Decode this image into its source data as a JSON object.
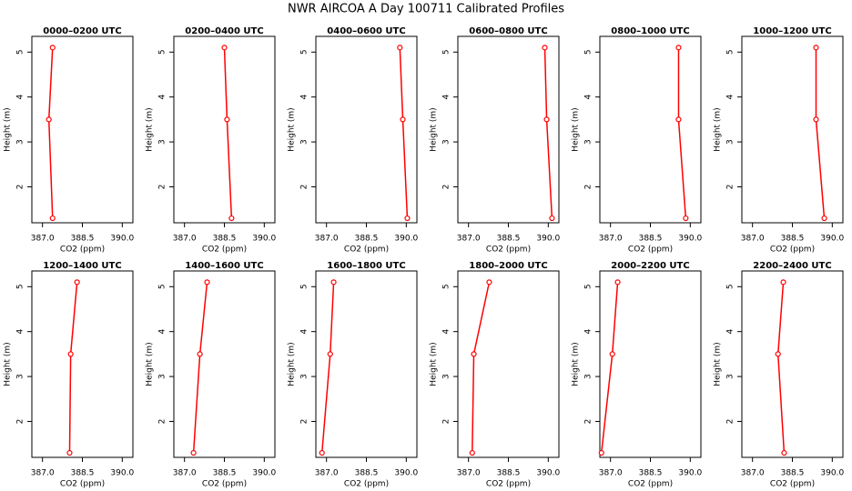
{
  "title": "NWR AIRCOA A  Day 100711  Calibrated Profiles",
  "chart_data": [
    {
      "type": "line",
      "title": "0000–0200 UTC",
      "xlabel": "CO2 (ppm)",
      "ylabel": "Height (m)",
      "xlim": [
        386.6,
        390.4
      ],
      "xticks": [
        {
          "value": 387,
          "label": "387.0"
        },
        388.5,
        {
          "value": 390,
          "label": "390.0"
        }
      ],
      "ylim": [
        1.2,
        5.35
      ],
      "yticks": [
        2,
        3,
        4,
        5
      ],
      "color": "#ff0000",
      "heights": [
        5.1,
        3.5,
        1.3
      ],
      "values": [
        387.38,
        387.24,
        387.38
      ]
    },
    {
      "type": "line",
      "title": "0200–0400 UTC",
      "xlabel": "CO2 (ppm)",
      "ylabel": "Height (m)",
      "xlim": [
        386.6,
        390.4
      ],
      "xticks": [
        {
          "value": 387,
          "label": "387.0"
        },
        388.5,
        {
          "value": 390,
          "label": "390.0"
        }
      ],
      "ylim": [
        1.2,
        5.35
      ],
      "yticks": [
        2,
        3,
        4,
        5
      ],
      "color": "#ff0000",
      "heights": [
        5.1,
        3.5,
        1.3
      ],
      "values": [
        388.5,
        388.6,
        388.77
      ]
    },
    {
      "type": "line",
      "title": "0400–0600 UTC",
      "xlabel": "CO2 (ppm)",
      "ylabel": "Height (m)",
      "xlim": [
        386.6,
        390.4
      ],
      "xticks": [
        {
          "value": 387,
          "label": "387.0"
        },
        388.5,
        {
          "value": 390,
          "label": "390.0"
        }
      ],
      "ylim": [
        1.2,
        5.35
      ],
      "yticks": [
        2,
        3,
        4,
        5
      ],
      "color": "#ff0000",
      "heights": [
        5.1,
        3.5,
        1.3
      ],
      "values": [
        389.76,
        389.87,
        390.04
      ]
    },
    {
      "type": "line",
      "title": "0600–0800 UTC",
      "xlabel": "CO2 (ppm)",
      "ylabel": "Height (m)",
      "xlim": [
        386.6,
        390.4
      ],
      "xticks": [
        {
          "value": 387,
          "label": "387.0"
        },
        388.5,
        {
          "value": 390,
          "label": "390.0"
        }
      ],
      "ylim": [
        1.2,
        5.35
      ],
      "yticks": [
        2,
        3,
        4,
        5
      ],
      "color": "#ff0000",
      "heights": [
        5.1,
        3.5,
        1.3
      ],
      "values": [
        389.87,
        389.94,
        390.14
      ]
    },
    {
      "type": "line",
      "title": "0800–1000 UTC",
      "xlabel": "CO2 (ppm)",
      "ylabel": "Height (m)",
      "xlim": [
        386.6,
        390.4
      ],
      "xticks": [
        {
          "value": 387,
          "label": "387.0"
        },
        388.5,
        {
          "value": 390,
          "label": "390.0"
        }
      ],
      "ylim": [
        1.2,
        5.35
      ],
      "yticks": [
        2,
        3,
        4,
        5
      ],
      "color": "#ff0000",
      "heights": [
        5.1,
        3.5,
        1.3
      ],
      "values": [
        389.56,
        389.56,
        389.83
      ]
    },
    {
      "type": "line",
      "title": "1000–1200 UTC",
      "xlabel": "CO2 (ppm)",
      "ylabel": "Height (m)",
      "xlim": [
        386.6,
        390.4
      ],
      "xticks": [
        {
          "value": 387,
          "label": "387.0"
        },
        388.5,
        {
          "value": 390,
          "label": "390.0"
        }
      ],
      "ylim": [
        1.2,
        5.35
      ],
      "yticks": [
        2,
        3,
        4,
        5
      ],
      "color": "#ff0000",
      "heights": [
        5.1,
        3.5,
        1.3
      ],
      "values": [
        389.39,
        389.39,
        389.7
      ]
    },
    {
      "type": "line",
      "title": "1200–1400 UTC",
      "xlabel": "CO2 (ppm)",
      "ylabel": "Height (m)",
      "xlim": [
        386.6,
        390.4
      ],
      "xticks": [
        {
          "value": 387,
          "label": "387.0"
        },
        388.5,
        {
          "value": 390,
          "label": "390.0"
        }
      ],
      "ylim": [
        1.2,
        5.35
      ],
      "yticks": [
        2,
        3,
        4,
        5
      ],
      "color": "#ff0000",
      "heights": [
        5.1,
        3.5,
        1.3
      ],
      "values": [
        388.3,
        388.06,
        388.02
      ]
    },
    {
      "type": "line",
      "title": "1400–1600 UTC",
      "xlabel": "CO2 (ppm)",
      "ylabel": "Height (m)",
      "xlim": [
        386.6,
        390.4
      ],
      "xticks": [
        {
          "value": 387,
          "label": "387.0"
        },
        388.5,
        {
          "value": 390,
          "label": "390.0"
        }
      ],
      "ylim": [
        1.2,
        5.35
      ],
      "yticks": [
        2,
        3,
        4,
        5
      ],
      "color": "#ff0000",
      "heights": [
        5.1,
        3.5,
        1.3
      ],
      "values": [
        387.85,
        387.58,
        387.34
      ]
    },
    {
      "type": "line",
      "title": "1600–1800 UTC",
      "xlabel": "CO2 (ppm)",
      "ylabel": "Height (m)",
      "xlim": [
        386.6,
        390.4
      ],
      "xticks": [
        {
          "value": 387,
          "label": "387.0"
        },
        388.5,
        {
          "value": 390,
          "label": "390.0"
        }
      ],
      "ylim": [
        1.2,
        5.35
      ],
      "yticks": [
        2,
        3,
        4,
        5
      ],
      "color": "#ff0000",
      "heights": [
        5.1,
        3.5,
        1.3
      ],
      "values": [
        387.27,
        387.14,
        386.83
      ]
    },
    {
      "type": "line",
      "title": "1800–2000 UTC",
      "xlabel": "CO2 (ppm)",
      "ylabel": "Height (m)",
      "xlim": [
        386.6,
        390.4
      ],
      "xticks": [
        {
          "value": 387,
          "label": "387.0"
        },
        388.5,
        {
          "value": 390,
          "label": "390.0"
        }
      ],
      "ylim": [
        1.2,
        5.35
      ],
      "yticks": [
        2,
        3,
        4,
        5
      ],
      "color": "#ff0000",
      "heights": [
        5.1,
        3.5,
        1.3
      ],
      "values": [
        387.78,
        387.2,
        387.14
      ]
    },
    {
      "type": "line",
      "title": "2000–2200 UTC",
      "xlabel": "CO2 (ppm)",
      "ylabel": "Height (m)",
      "xlim": [
        386.6,
        390.4
      ],
      "xticks": [
        {
          "value": 387,
          "label": "387.0"
        },
        388.5,
        {
          "value": 390,
          "label": "390.0"
        }
      ],
      "ylim": [
        1.2,
        5.35
      ],
      "yticks": [
        2,
        3,
        4,
        5
      ],
      "color": "#ff0000",
      "heights": [
        5.1,
        3.5,
        1.3
      ],
      "values": [
        387.27,
        387.07,
        386.66
      ]
    },
    {
      "type": "line",
      "title": "2200–2400 UTC",
      "xlabel": "CO2 (ppm)",
      "ylabel": "Height (m)",
      "xlim": [
        386.6,
        390.4
      ],
      "xticks": [
        {
          "value": 387,
          "label": "387.0"
        },
        388.5,
        {
          "value": 390,
          "label": "390.0"
        }
      ],
      "ylim": [
        1.2,
        5.35
      ],
      "yticks": [
        2,
        3,
        4,
        5
      ],
      "color": "#ff0000",
      "heights": [
        5.1,
        3.5,
        1.3
      ],
      "values": [
        388.16,
        387.96,
        388.19
      ]
    }
  ]
}
